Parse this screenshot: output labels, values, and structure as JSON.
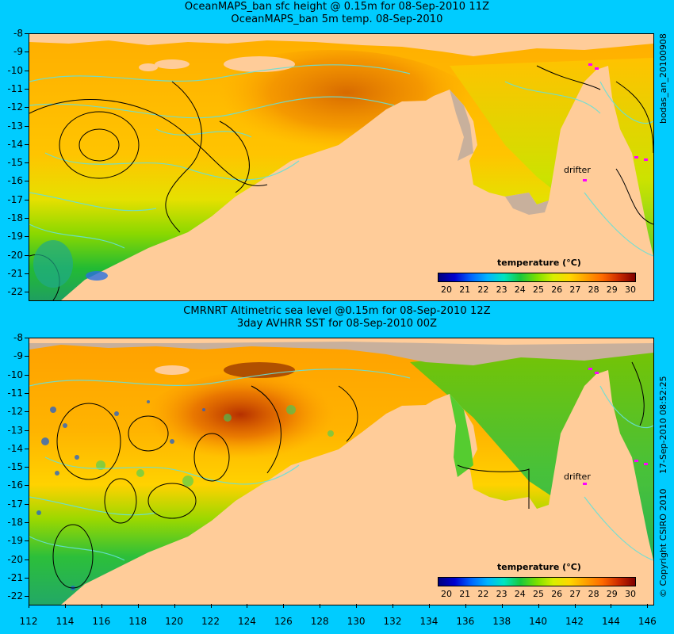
{
  "top_panel": {
    "title_line1": "OceanMAPS_ban sfc height @ 0.15m for 08-Sep-2010 11Z",
    "title_line2": "OceanMAPS_ban 5m temp. 08-Sep-2010",
    "side_label": "bodas_an_20100908",
    "colorbar_title": "temperature (°C)",
    "drifter_label": "drifter"
  },
  "bottom_panel": {
    "title_line1": "CMRNRT Altimetric sea level  @0.15m  for 08-Sep-2010 12Z",
    "title_line2": "3day AVHRR SST for 08-Sep-2010 00Z",
    "side_label": "17-Sep-2010 08:52:25",
    "colorbar_title": "temperature (°C)",
    "drifter_label": "drifter"
  },
  "copyright": "© Copyright CSIRO 2010",
  "axes": {
    "lat_ticks": [
      "-8",
      "-9",
      "-10",
      "-11",
      "-12",
      "-13",
      "-14",
      "-15",
      "-16",
      "-17",
      "-18",
      "-19",
      "-20",
      "-21",
      "-22"
    ],
    "lon_ticks": [
      "112",
      "114",
      "116",
      "118",
      "120",
      "122",
      "124",
      "126",
      "128",
      "130",
      "132",
      "134",
      "136",
      "138",
      "140",
      "142",
      "144",
      "146"
    ]
  },
  "colorbar": {
    "labels": [
      "20",
      "21",
      "22",
      "23",
      "24",
      "25",
      "26",
      "27",
      "28",
      "29",
      "30"
    ],
    "colors": [
      "#00007f",
      "#0000d0",
      "#0066ff",
      "#00b5ff",
      "#00e5c0",
      "#19c83c",
      "#7be000",
      "#d8ef00",
      "#ffd700",
      "#ffa000",
      "#ff6a00",
      "#cc2a00",
      "#7f0000"
    ]
  },
  "colors": {
    "land": "#ffcc99",
    "background": "#00ccff",
    "contour_cyan": "#66e0d8",
    "contour_black": "#000000",
    "drifter": "#ff00ff",
    "missing_data": "#c8b09c"
  }
}
